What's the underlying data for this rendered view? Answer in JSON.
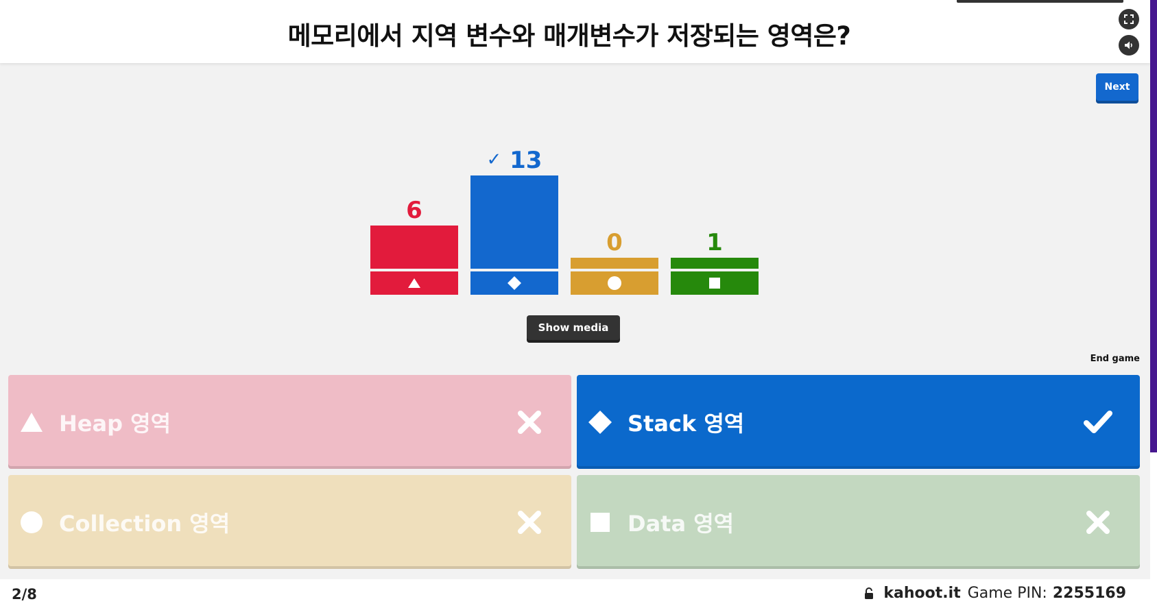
{
  "header": {
    "question": "메모리에서 지역 변수와 매개변수가 저장되는 영역은?",
    "fullscreen_icon": "fullscreen-icon",
    "sound_icon": "speaker-icon"
  },
  "controls": {
    "next_label": "Next",
    "show_media_label": "Show media",
    "end_game_label": "End game"
  },
  "colors": {
    "red": "#e21b3c",
    "blue": "#1368ce",
    "yellow": "#d89e30",
    "green": "#26890c"
  },
  "chart_data": {
    "type": "bar",
    "categories": [
      "triangle",
      "diamond",
      "circle",
      "square"
    ],
    "values": [
      6,
      13,
      0,
      1
    ],
    "correct": [
      false,
      true,
      false,
      false
    ],
    "correct_mark": "✓"
  },
  "answers": [
    {
      "shape": "triangle",
      "label": "Heap 영역",
      "correct": false,
      "mark_icon": "cross-icon"
    },
    {
      "shape": "diamond",
      "label": "Stack 영역",
      "correct": true,
      "mark_icon": "check-icon"
    },
    {
      "shape": "circle",
      "label": "Collection 영역",
      "correct": false,
      "mark_icon": "cross-icon"
    },
    {
      "shape": "square",
      "label": "Data 영역",
      "correct": false,
      "mark_icon": "cross-icon"
    }
  ],
  "footer": {
    "counter": "2/8",
    "site": "kahoot.it",
    "pin_label": "Game PIN:",
    "pin": "2255169"
  }
}
